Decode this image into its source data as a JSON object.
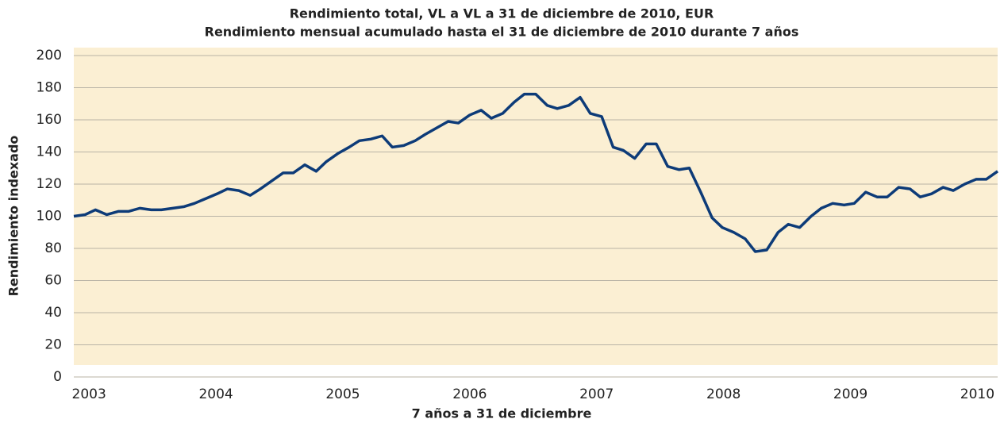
{
  "chart_data": {
    "type": "line",
    "title": "Rendimiento total, VL a VL a 31 de diciembre de 2010, EUR",
    "subtitle": "Rendimiento mensual acumulado hasta el 31 de diciembre de 2010 durante 7 años",
    "x_label": "7 años a 31 de diciembre",
    "y_label": "Rendimiento indexado",
    "x": [
      2002.88,
      2002.97,
      2003.05,
      2003.14,
      2003.23,
      2003.31,
      2003.4,
      2003.49,
      2003.57,
      2003.66,
      2003.75,
      2003.83,
      2003.92,
      2004.01,
      2004.09,
      2004.18,
      2004.27,
      2004.35,
      2004.44,
      2004.53,
      2004.61,
      2004.7,
      2004.79,
      2004.87,
      2004.96,
      2005.05,
      2005.13,
      2005.22,
      2005.31,
      2005.39,
      2005.48,
      2005.57,
      2005.65,
      2005.74,
      2005.83,
      2005.91,
      2006.0,
      2006.09,
      2006.17,
      2006.26,
      2006.35,
      2006.43,
      2006.52,
      2006.61,
      2006.69,
      2006.78,
      2006.87,
      2006.95,
      2007.04,
      2007.13,
      2007.21,
      2007.3,
      2007.39,
      2007.47,
      2007.56,
      2007.65,
      2007.73,
      2007.82,
      2007.91,
      2007.99,
      2008.08,
      2008.17,
      2008.25,
      2008.34,
      2008.43,
      2008.51,
      2008.6,
      2008.69,
      2008.77,
      2008.86,
      2008.95,
      2009.03,
      2009.12,
      2009.21,
      2009.29,
      2009.38,
      2009.47,
      2009.55,
      2009.64,
      2009.73,
      2009.81,
      2009.9,
      2009.99,
      2010.07,
      2010.16
    ],
    "series": [
      {
        "name": "Rendimiento indexado",
        "color": "#0d3b78",
        "values": [
          100,
          101,
          104,
          101,
          103,
          103,
          105,
          104,
          104,
          105,
          106,
          108,
          111,
          114,
          117,
          116,
          113,
          117,
          122,
          127,
          127,
          132,
          128,
          134,
          139,
          143,
          147,
          148,
          150,
          143,
          144,
          147,
          151,
          155,
          159,
          158,
          163,
          166,
          161,
          164,
          171,
          176,
          176,
          169,
          167,
          169,
          174,
          164,
          162,
          143,
          141,
          136,
          145,
          145,
          131,
          129,
          130,
          115,
          99,
          93,
          90,
          86,
          78,
          79,
          90,
          95,
          93,
          100,
          105,
          108,
          107,
          108,
          115,
          112,
          112,
          118,
          117,
          112,
          114,
          118,
          116,
          120,
          123,
          123,
          128
        ]
      }
    ],
    "xlim": [
      2002.88,
      2010.16
    ],
    "xticks": [
      2003,
      2004,
      2005,
      2006,
      2007,
      2008,
      2009,
      2010
    ],
    "ylim": [
      0,
      200
    ],
    "yticks": [
      0,
      20,
      40,
      60,
      80,
      100,
      120,
      140,
      160,
      180,
      200
    ],
    "grid": true
  }
}
